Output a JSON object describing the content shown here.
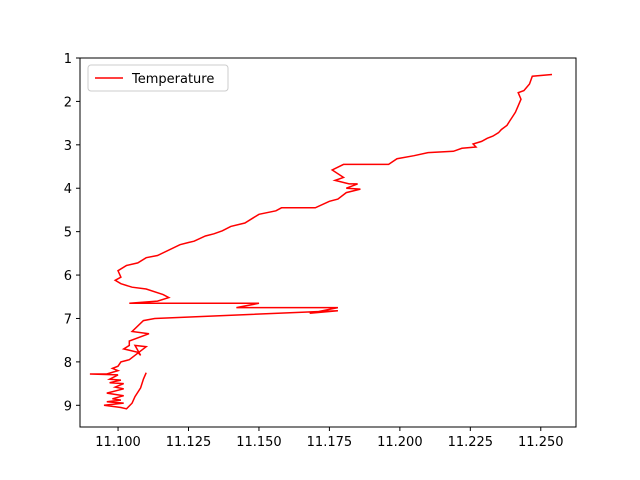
{
  "chart_data": {
    "type": "line",
    "title": "",
    "xlabel": "",
    "ylabel": "",
    "xlim": [
      11.0865,
      11.2625
    ],
    "ylim": [
      9.5,
      1.0
    ],
    "y_inverted": true,
    "grid": false,
    "legend_position": "top-left",
    "xticks": [
      "11.100",
      "11.125",
      "11.150",
      "11.175",
      "11.200",
      "11.225",
      "11.250"
    ],
    "yticks": [
      "1",
      "2",
      "3",
      "4",
      "5",
      "6",
      "7",
      "8",
      "9"
    ],
    "series": [
      {
        "name": "Temperature",
        "color": "#ff0000",
        "x": [
          11.254,
          11.247,
          11.246,
          11.244,
          11.242,
          11.243,
          11.242,
          11.241,
          11.24,
          11.239,
          11.238,
          11.236,
          11.235,
          11.233,
          11.231,
          11.229,
          11.226,
          11.227,
          11.222,
          11.219,
          11.21,
          11.205,
          11.199,
          11.196,
          11.18,
          11.176,
          11.18,
          11.177,
          11.182,
          11.185,
          11.181,
          11.186,
          11.181,
          11.178,
          11.175,
          11.17,
          11.158,
          11.156,
          11.15,
          11.148,
          11.145,
          11.14,
          11.137,
          11.134,
          11.131,
          11.127,
          11.125,
          11.122,
          11.114,
          11.11,
          11.107,
          11.103,
          11.1,
          11.101,
          11.099,
          11.101,
          11.105,
          11.11,
          11.116,
          11.118,
          11.114,
          11.104,
          11.15,
          11.142,
          11.178,
          11.168,
          11.178,
          11.113,
          11.109,
          11.105,
          11.111,
          11.104,
          11.104,
          11.102,
          11.107,
          11.108,
          11.106,
          11.11,
          11.104,
          11.101,
          11.1,
          11.098,
          11.1,
          11.096,
          11.09,
          11.1,
          11.097,
          11.101,
          11.097,
          11.102,
          11.099,
          11.102,
          11.096,
          11.102,
          11.098,
          11.101,
          11.096,
          11.102,
          11.095,
          11.101,
          11.103,
          11.105,
          11.106,
          11.108,
          11.109,
          11.11
        ],
        "y": [
          1.38,
          1.42,
          1.6,
          1.75,
          1.8,
          1.95,
          2.1,
          2.25,
          2.35,
          2.45,
          2.55,
          2.65,
          2.72,
          2.8,
          2.85,
          2.92,
          2.98,
          3.05,
          3.08,
          3.15,
          3.18,
          3.25,
          3.32,
          3.45,
          3.45,
          3.58,
          3.75,
          3.82,
          3.9,
          3.9,
          4.0,
          4.02,
          4.1,
          4.25,
          4.3,
          4.45,
          4.45,
          4.52,
          4.6,
          4.68,
          4.8,
          4.88,
          4.98,
          5.05,
          5.1,
          5.22,
          5.25,
          5.3,
          5.55,
          5.6,
          5.72,
          5.78,
          5.9,
          6.05,
          6.12,
          6.2,
          6.28,
          6.32,
          6.45,
          6.52,
          6.6,
          6.65,
          6.65,
          6.75,
          6.75,
          6.88,
          6.82,
          7.0,
          7.05,
          7.3,
          7.35,
          7.52,
          7.62,
          7.7,
          7.78,
          7.85,
          7.62,
          7.65,
          7.95,
          8.0,
          8.1,
          8.15,
          8.2,
          8.28,
          8.28,
          8.3,
          8.4,
          8.42,
          8.48,
          8.5,
          8.58,
          8.62,
          8.72,
          8.78,
          8.85,
          8.88,
          8.92,
          8.95,
          9.0,
          9.05,
          9.08,
          8.95,
          8.8,
          8.6,
          8.4,
          8.25
        ]
      }
    ]
  }
}
